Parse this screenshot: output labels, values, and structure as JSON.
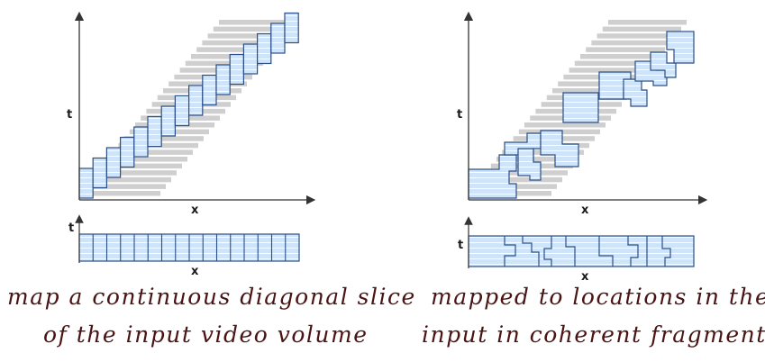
{
  "left_panel": {
    "axis_t": "t",
    "axis_x": "x",
    "strip_t": "t",
    "strip_x": "x",
    "caption_line1": "map a continuous diagonal slice",
    "caption_line2": "of the input video volume"
  },
  "right_panel": {
    "axis_t": "t",
    "axis_x": "x",
    "strip_t": "t",
    "strip_x": "x",
    "caption_line1": "mapped to locations in the",
    "caption_line2": "input in coherent fragments"
  },
  "colors": {
    "gray_band": "#cfcfcf",
    "blue_fill": "#cfe4f8",
    "blue_stroke": "#2b4f86",
    "axis": "#333333",
    "caption_ink": "#4a1414"
  }
}
